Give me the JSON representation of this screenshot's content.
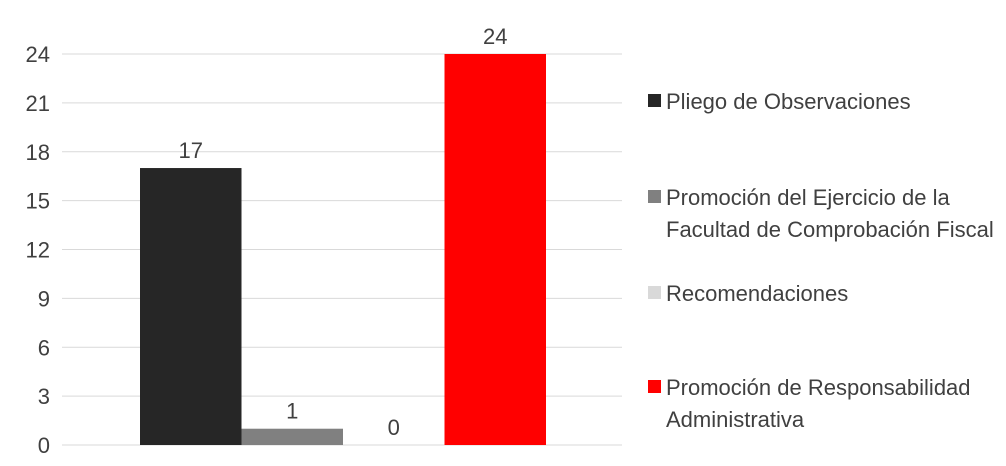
{
  "chart_data": {
    "type": "bar",
    "categories": [
      ""
    ],
    "series": [
      {
        "name": "Pliego de Observaciones",
        "values": [
          17
        ],
        "color": "#262626"
      },
      {
        "name": "Promoción del Ejercicio de la Facultad de Comprobación Fiscal",
        "values": [
          1
        ],
        "color": "#808080"
      },
      {
        "name": "Recomendaciones",
        "values": [
          0
        ],
        "color": "#d9d9d9"
      },
      {
        "name": "Promoción de Responsabilidad Administrativa",
        "values": [
          24
        ],
        "color": "#ff0000"
      }
    ],
    "yticks": [
      "0",
      "3",
      "6",
      "9",
      "12",
      "15",
      "18",
      "21",
      "24"
    ],
    "ylim": [
      0,
      24
    ],
    "grid": true,
    "data_labels": [
      "17",
      "1",
      "0",
      "24"
    ],
    "legend_position": "right"
  },
  "legend": {
    "items": [
      {
        "label": "Pliego de Observaciones",
        "color": "#262626"
      },
      {
        "label": "Promoción del Ejercicio de la Facultad de Comprobación Fiscal",
        "color": "#808080"
      },
      {
        "label": "Recomendaciones",
        "color": "#d9d9d9"
      },
      {
        "label": "Promoción de Responsabilidad Administrativa",
        "color": "#ff0000"
      }
    ]
  }
}
